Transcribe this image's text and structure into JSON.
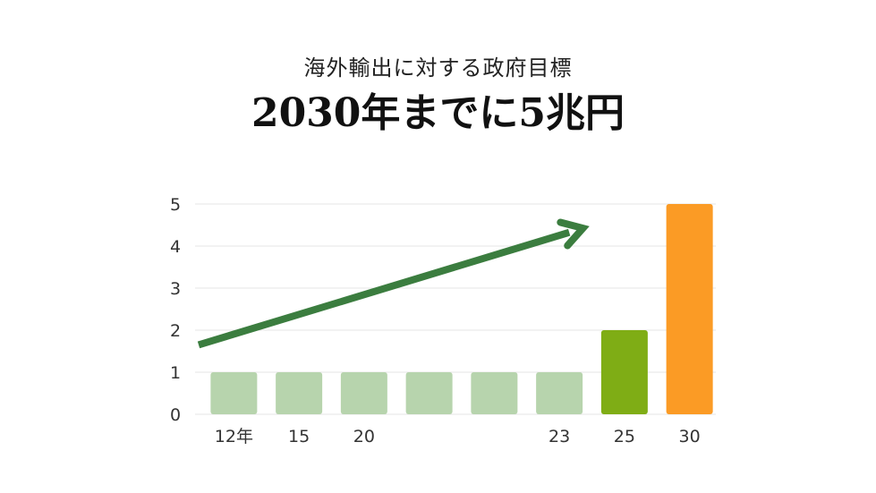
{
  "header": {
    "subtitle": "海外輸出に対する政府目標",
    "title": "2030年までに5兆円"
  },
  "chart_data": {
    "type": "bar",
    "title": "2030年までに5兆円",
    "subtitle": "海外輸出に対する政府目標",
    "xlabel": "",
    "ylabel": "",
    "ylim": [
      0,
      5
    ],
    "yticks": [
      0,
      1,
      2,
      3,
      4,
      5
    ],
    "grid": true,
    "legend": "none",
    "bars": [
      {
        "label": "12年",
        "value": 1,
        "color": "#b7d4ad"
      },
      {
        "label": "15",
        "value": 1,
        "color": "#b7d4ad"
      },
      {
        "label": "20",
        "value": 1,
        "color": "#b7d4ad"
      },
      {
        "label": "",
        "value": 1,
        "color": "#b7d4ad"
      },
      {
        "label": "",
        "value": 1,
        "color": "#b7d4ad"
      },
      {
        "label": "23",
        "value": 1,
        "color": "#b7d4ad"
      },
      {
        "label": "25",
        "value": 2,
        "color": "#7fad15"
      },
      {
        "label": "30",
        "value": 5,
        "color": "#fb9b25"
      }
    ],
    "trend_arrow": {
      "color": "#3b7d3f",
      "from": 1.65,
      "to": 4.35
    }
  }
}
